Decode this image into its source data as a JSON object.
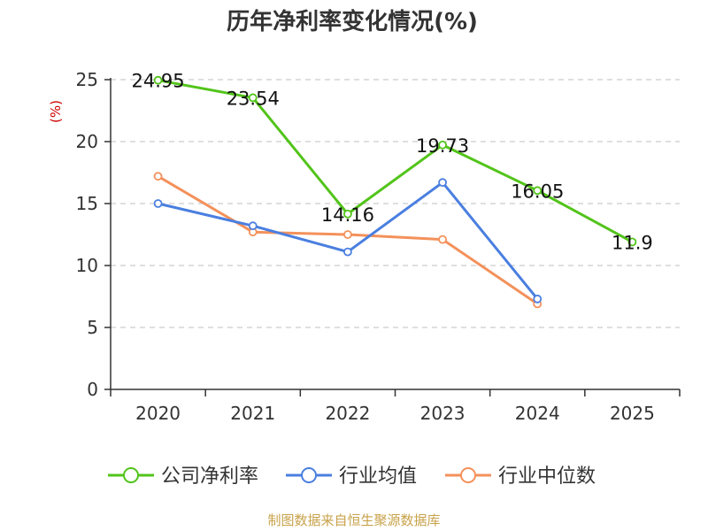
{
  "chart_data": {
    "type": "line",
    "title": "历年净利率变化情况(%)",
    "unit_label": "(%)",
    "categories": [
      "2020",
      "2021",
      "2022",
      "2023",
      "2024",
      "2025"
    ],
    "ylim": [
      0,
      25
    ],
    "yticks": [
      0,
      5,
      10,
      15,
      20,
      25
    ],
    "grid": true,
    "legend_position": "bottom",
    "series": [
      {
        "name": "公司净利率",
        "color": "#52c41a",
        "values": [
          24.95,
          23.54,
          14.16,
          19.73,
          16.05,
          11.9
        ],
        "labels": [
          "24.95",
          "23.54",
          "14.16",
          "19.73",
          "16.05",
          "11.9"
        ]
      },
      {
        "name": "行业均值",
        "color": "#4a7fe0",
        "values": [
          15.0,
          13.2,
          11.1,
          16.7,
          7.3,
          null
        ]
      },
      {
        "name": "行业中位数",
        "color": "#f4915b",
        "values": [
          17.2,
          12.7,
          12.5,
          12.1,
          6.9,
          null
        ]
      }
    ]
  },
  "colors": {
    "unit": "#cc0000",
    "source": "#c8a24a",
    "axis": "#333333",
    "grid": "#cccccc"
  },
  "source": "制图数据来自恒生聚源数据库"
}
